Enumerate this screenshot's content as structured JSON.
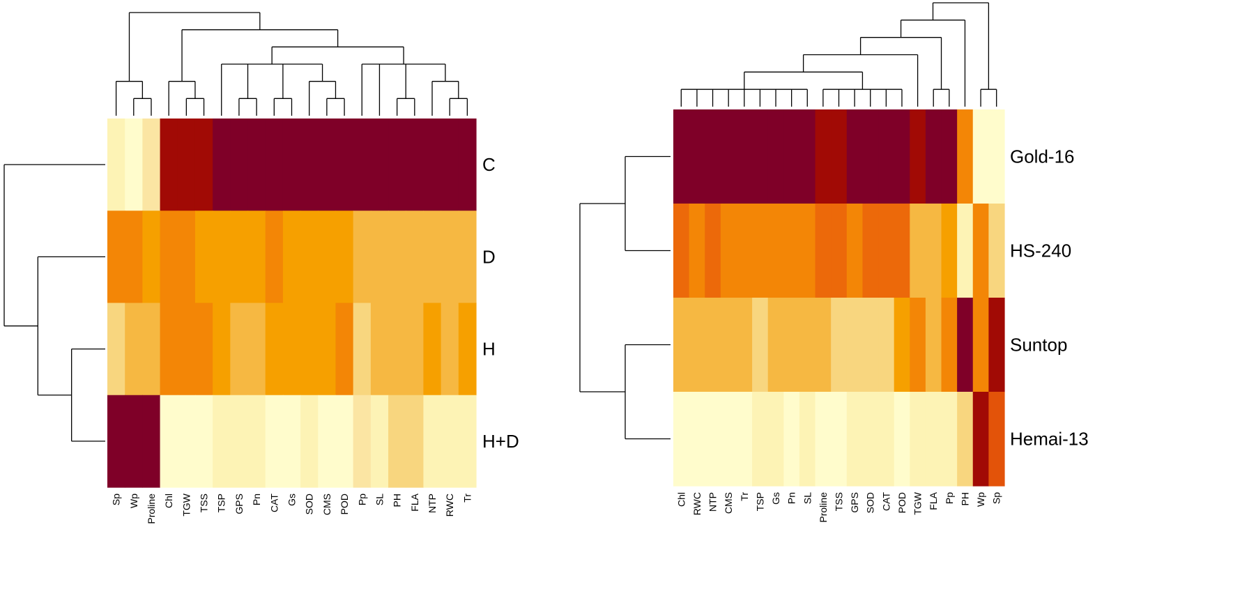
{
  "chart_data": [
    {
      "type": "heatmap",
      "title": "",
      "xlabel": "",
      "ylabel": "",
      "colormap": [
        "#fffccc",
        "#fdf3b5",
        "#fbe5a3",
        "#f8d67f",
        "#f6b842",
        "#f6a000",
        "#f38606",
        "#ec690a",
        "#e35309",
        "#a10a05",
        "#7f0028"
      ],
      "value_range": [
        0,
        10
      ],
      "rows": [
        "C",
        "D",
        "H",
        "H+D"
      ],
      "columns": [
        "Sp",
        "Wp",
        "Proline",
        "Chl",
        "TGW",
        "TSS",
        "TSP",
        "GPS",
        "Pn",
        "CAT",
        "Gs",
        "SOD",
        "CMS",
        "POD",
        "Pp",
        "SL",
        "PH",
        "FLA",
        "NTP",
        "RWC",
        "Tr"
      ],
      "values": [
        [
          1,
          0,
          2,
          9,
          9,
          9,
          10,
          10,
          10,
          10,
          10,
          10,
          10,
          10,
          10,
          10,
          10,
          10,
          10,
          10,
          10
        ],
        [
          6,
          6,
          5,
          6,
          6,
          5,
          5,
          5,
          5,
          6,
          5,
          5,
          5,
          5,
          4,
          4,
          4,
          4,
          4,
          4,
          4
        ],
        [
          3,
          4,
          4,
          6,
          6,
          6,
          5,
          4,
          4,
          5,
          5,
          5,
          5,
          6,
          3,
          4,
          4,
          4,
          5,
          4,
          5
        ],
        [
          10,
          10,
          10,
          0,
          0,
          0,
          1,
          1,
          1,
          0,
          0,
          1,
          0,
          0,
          2,
          1,
          3,
          3,
          1,
          1,
          1
        ]
      ],
      "row_dendrogram": "(C,(D,(H,H+D)))",
      "column_dendrogram": "((Sp,(Wp,Proline)),((Chl,(TGW,TSS)),((TSP,(GPS,Pn),(CAT,Gs),(SOD,(CMS,POD))),(Pp,SL,(PH,FLA),(NTP,(RWC,Tr))))))"
    },
    {
      "type": "heatmap",
      "title": "",
      "xlabel": "",
      "ylabel": "",
      "colormap": [
        "#fffccc",
        "#fdf3b5",
        "#fbe5a3",
        "#f8d67f",
        "#f6b842",
        "#f6a000",
        "#f38606",
        "#ec690a",
        "#e35309",
        "#a10a05",
        "#7f0028"
      ],
      "value_range": [
        0,
        10
      ],
      "rows": [
        "Gold-16",
        "HS-240",
        "Suntop",
        "Hemai-13"
      ],
      "columns": [
        "Chl",
        "RWC",
        "NTP",
        "CMS",
        "Tr",
        "TSP",
        "Gs",
        "Pn",
        "SL",
        "Proline",
        "TSS",
        "GPS",
        "SOD",
        "CAT",
        "POD",
        "TGW",
        "FLA",
        "Pp",
        "PH",
        "Wp",
        "Sp"
      ],
      "values": [
        [
          10,
          10,
          10,
          10,
          10,
          10,
          10,
          10,
          10,
          9,
          9,
          10,
          10,
          10,
          10,
          9,
          10,
          10,
          6,
          0,
          0
        ],
        [
          7,
          6,
          7,
          6,
          6,
          6,
          6,
          6,
          6,
          7,
          7,
          6,
          7,
          7,
          7,
          4,
          4,
          5,
          1,
          6,
          3
        ],
        [
          4,
          4,
          4,
          4,
          4,
          3,
          4,
          4,
          4,
          4,
          3,
          3,
          3,
          3,
          5,
          6,
          4,
          6,
          10,
          6,
          9
        ],
        [
          0,
          0,
          0,
          0,
          0,
          1,
          1,
          0,
          1,
          0,
          0,
          1,
          1,
          1,
          0,
          1,
          1,
          1,
          3,
          9,
          8
        ]
      ],
      "row_dendrogram": "((Gold-16,HS-240),(Suntop,Hemai-13))",
      "column_dendrogram": "((((((Chl,RWC,NTP,CMS,Tr,TSP,Gs,Pn,SL),(Proline,TSS,GPS,SOD,CAT,POD)),TGW),(FLA,Pp)),PH),(Wp,Sp))"
    }
  ]
}
